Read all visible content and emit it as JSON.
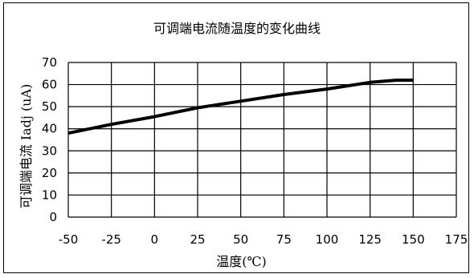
{
  "chart_data": {
    "type": "line",
    "title": "可调端电流随温度的变化曲线",
    "xlabel": "温度(℃)",
    "ylabel": "可调端电流 Iadj (uA)",
    "xlim": [
      -50,
      175
    ],
    "ylim": [
      0,
      70
    ],
    "xticks": [
      -50,
      -25,
      0,
      25,
      50,
      75,
      100,
      125,
      150,
      175
    ],
    "yticks": [
      0,
      10,
      20,
      30,
      40,
      50,
      60,
      70
    ],
    "grid": true,
    "series": [
      {
        "x": [
          -50,
          -25,
          0,
          25,
          50,
          75,
          100,
          125,
          140,
          150
        ],
        "y": [
          38,
          42,
          45.5,
          49.5,
          52.5,
          55.5,
          58,
          61,
          62,
          62
        ]
      }
    ]
  }
}
